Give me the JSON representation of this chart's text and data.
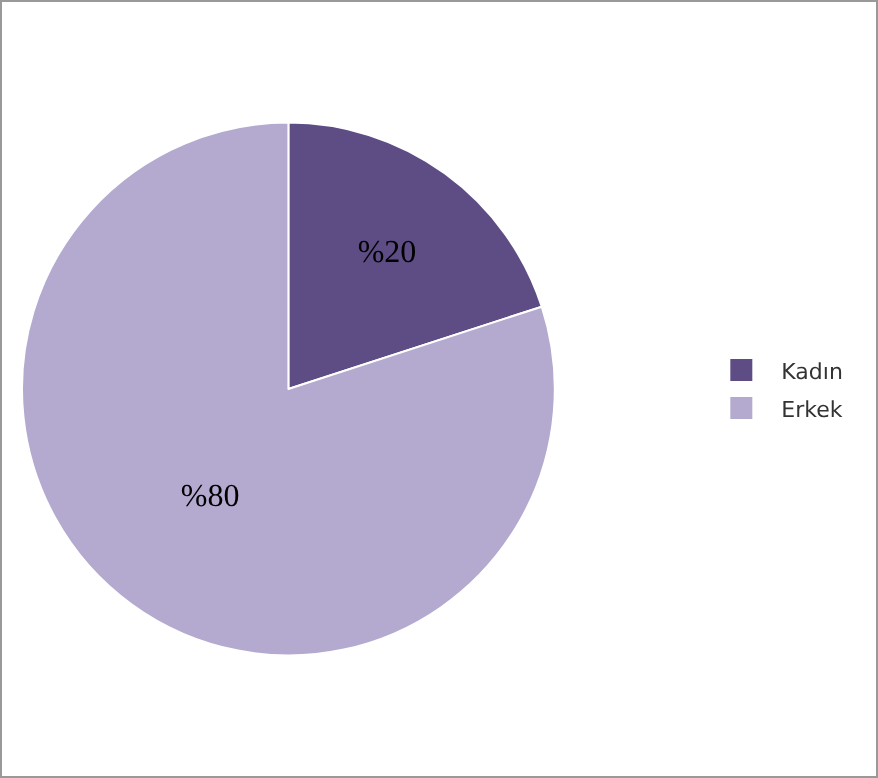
{
  "chart_data": {
    "type": "pie",
    "categories": [
      "Kadın",
      "Erkek"
    ],
    "values": [
      20,
      80
    ],
    "colors": [
      "#5e4d85",
      "#b4a9cf"
    ],
    "value_labels": [
      "%20",
      "%80"
    ],
    "legend": "right"
  }
}
